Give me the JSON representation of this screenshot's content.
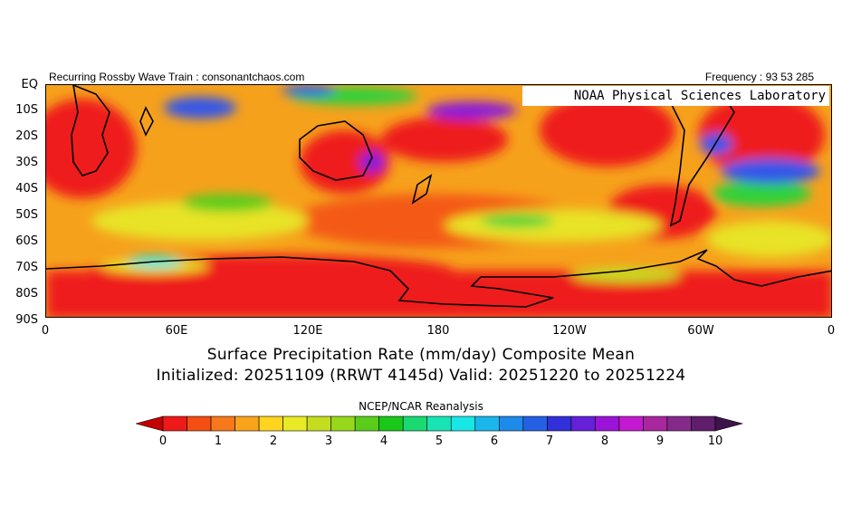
{
  "header": {
    "left_text": "Recurring Rossby Wave Train : consonantchaos.com",
    "right_text": "Frequency : 93 53 285",
    "org_label": "NOAA Physical Sciences Laboratory"
  },
  "map": {
    "lat_labels": [
      "EQ",
      "10S",
      "20S",
      "30S",
      "40S",
      "50S",
      "60S",
      "70S",
      "80S",
      "90S"
    ],
    "lon_labels": [
      "0",
      "60E",
      "120E",
      "180",
      "120W",
      "60W",
      "0"
    ],
    "colors": {
      "low": "#ee1a1a",
      "mid_low": "#f7a000",
      "mid": "#d8e020",
      "green": "#2fd23a",
      "cyan": "#19e8e8",
      "blue": "#3456e8",
      "purple": "#8a1fd8",
      "coast": "#000000"
    }
  },
  "title": {
    "line1": "Surface Precipitation Rate (mm/day) Composite Mean",
    "line2": "Initialized: 20251109 (RRWT 4145d) Valid: 20251220 to 20251224"
  },
  "source": "NCEP/NCAR Reanalysis",
  "colorbar": {
    "colors": [
      "#c40000",
      "#ee1a1a",
      "#f44e12",
      "#f7771b",
      "#f9a31c",
      "#ffd51f",
      "#e9e925",
      "#c4dd21",
      "#97d81b",
      "#5acd1b",
      "#19c819",
      "#1bd972",
      "#18e4b6",
      "#19e6e6",
      "#1bb6ec",
      "#1e8aea",
      "#2560e4",
      "#3230d9",
      "#6520d9",
      "#9a14d8",
      "#c41acf",
      "#a8269e",
      "#852a8a",
      "#5e1e6a",
      "#3b144a"
    ],
    "tick_labels": [
      "0",
      "1",
      "2",
      "3",
      "4",
      "5",
      "6",
      "7",
      "8",
      "9",
      "10"
    ]
  }
}
